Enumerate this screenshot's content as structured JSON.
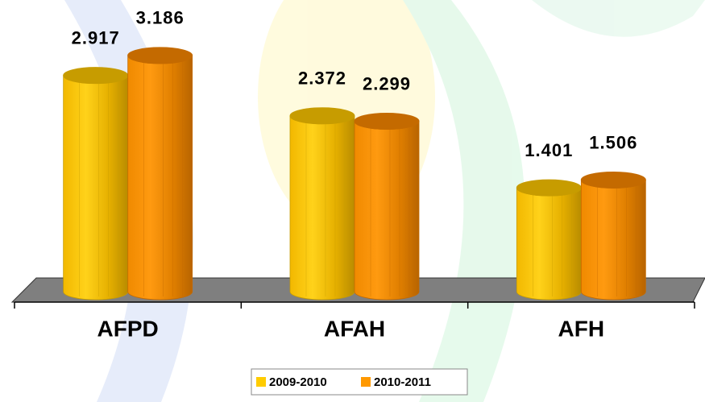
{
  "chart_data": {
    "type": "bar",
    "categories": [
      "AFPD",
      "AFAH",
      "AFH"
    ],
    "series": [
      {
        "name": "2009-2010",
        "color": "#ffcc00",
        "values": [
          2.917,
          2.372,
          1.401
        ]
      },
      {
        "name": "2010-2011",
        "color": "#ff9900",
        "values": [
          3.186,
          2.299,
          1.506
        ]
      }
    ],
    "ylim": [
      0,
      3.5
    ],
    "legend": "bottom"
  }
}
